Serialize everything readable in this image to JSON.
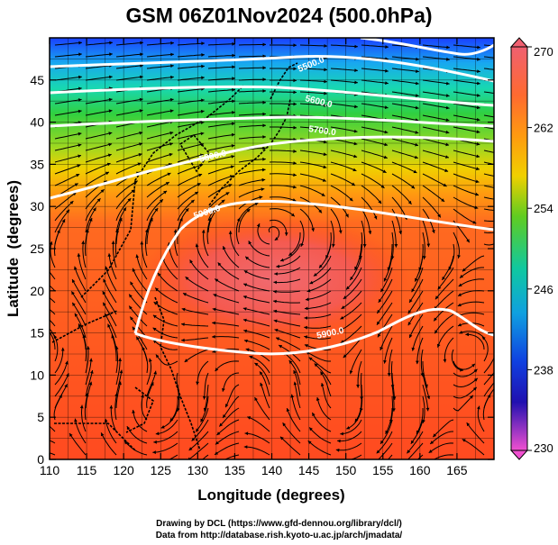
{
  "title": "GSM 06Z01Nov2024 (500.0hPa)",
  "map": {
    "xlabel": "Longitude (degrees)",
    "ylabel": "Latitude  (degrees)",
    "lon_range": [
      110,
      170
    ],
    "lat_range": [
      0,
      50
    ],
    "lon_ticks": [
      "110",
      "115",
      "120",
      "125",
      "130",
      "135",
      "140",
      "145",
      "150",
      "155",
      "160",
      "165"
    ],
    "lat_ticks": [
      "0",
      "5",
      "10",
      "15",
      "20",
      "25",
      "30",
      "35",
      "40",
      "45"
    ],
    "contours": [
      {
        "label": "5900.0"
      },
      {
        "label": "5800.0"
      },
      {
        "label": "5700.0"
      },
      {
        "label": "5600.0"
      },
      {
        "label": "5500.0"
      }
    ]
  },
  "colorbar": {
    "labels": [
      "270",
      "262",
      "254",
      "246",
      "238",
      "230"
    ],
    "min": 230,
    "max": 270,
    "colors": [
      "#f06070",
      "#ff7a2a",
      "#ffa500",
      "#d8cc10",
      "#60cc20",
      "#10c8a0",
      "#10a0e0",
      "#1040e0",
      "#2010b0",
      "#b010b0",
      "#f050d0"
    ]
  },
  "credits": {
    "line1": "Drawing by DCL (https://www.gfd-dennou.org/library/dcl/)",
    "line2": "Data from http://database.rish.kyoto-u.ac.jp/arch/jmadata/"
  }
}
